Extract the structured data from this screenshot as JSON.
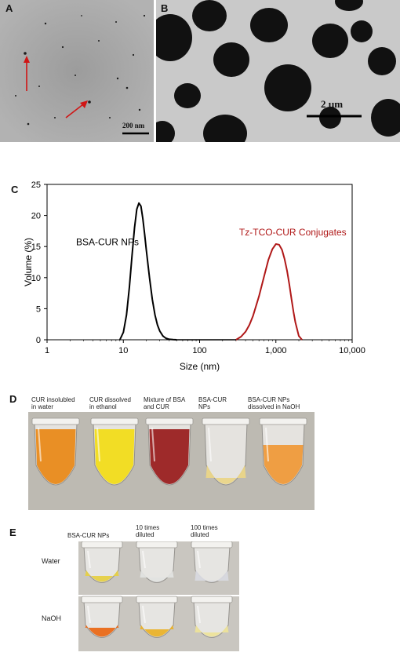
{
  "panels": {
    "a": {
      "label": "A",
      "scale_bar": "200 nm"
    },
    "b": {
      "label": "B",
      "scale_bar": "2 µm"
    },
    "c": {
      "label": "C"
    },
    "d": {
      "label": "D",
      "tubes": [
        {
          "caption": "CUR insolubled\nin water",
          "color": "#e98a1a"
        },
        {
          "caption": "CUR dissolved\nin ethanol",
          "color": "#f2dc1a"
        },
        {
          "caption": "Mixture of BSA\nand CUR",
          "color": "#9a2020"
        },
        {
          "caption": "BSA-CUR\nNPs",
          "color": "#ead588"
        },
        {
          "caption": "BSA-CUR NPs\ndissolved in NaOH",
          "color": "#ef9a3a"
        }
      ]
    },
    "e": {
      "label": "E",
      "columns": [
        "BSA-CUR NPs",
        "10 times\ndiluted",
        "100 times\ndiluted"
      ],
      "rows": [
        "Water",
        "NaOH"
      ],
      "colors": {
        "water": [
          "#e6d046",
          "#e2e3e0",
          "#d8d9df"
        ],
        "naoh": [
          "#ea6a18",
          "#eab22a",
          "#ede39a"
        ]
      }
    }
  },
  "chart_data": {
    "type": "line",
    "xlabel": "Size (nm)",
    "ylabel": "Volume (%)",
    "xscale": "log",
    "xlim": [
      1,
      10000
    ],
    "ylim": [
      0,
      25
    ],
    "xticks": [
      1,
      10,
      100,
      1000,
      10000
    ],
    "xtick_labels": [
      "1",
      "10",
      "100",
      "1,000",
      "10,000"
    ],
    "yticks": [
      0,
      5,
      10,
      15,
      20,
      25
    ],
    "ytick_labels": [
      "0",
      "5",
      "10",
      "15",
      "20",
      "25"
    ],
    "series": [
      {
        "name": "BSA-CUR NPs",
        "color": "#000000",
        "x": [
          9,
          10,
          11,
          12,
          13,
          14,
          15,
          16,
          17,
          18,
          19,
          20,
          22,
          24,
          26,
          28,
          30,
          33,
          36,
          40,
          45,
          50
        ],
        "y": [
          0,
          1.2,
          4.0,
          8.5,
          13.5,
          18.0,
          21.0,
          22.0,
          21.5,
          19.5,
          17.0,
          14.5,
          10.0,
          6.5,
          4.0,
          2.4,
          1.4,
          0.6,
          0.25,
          0.08,
          0.02,
          0
        ]
      },
      {
        "name": "Tz-TCO-CUR Conjugates",
        "color": "#b01818",
        "x": [
          300,
          350,
          400,
          450,
          500,
          600,
          700,
          800,
          900,
          1000,
          1100,
          1200,
          1300,
          1400,
          1500,
          1600,
          1700,
          1800,
          2000,
          2200
        ],
        "y": [
          0,
          0.5,
          1.3,
          2.4,
          3.8,
          7.0,
          10.2,
          12.9,
          14.6,
          15.4,
          15.3,
          14.5,
          13.0,
          11.1,
          8.9,
          6.6,
          4.5,
          2.8,
          0.6,
          0
        ]
      }
    ]
  }
}
